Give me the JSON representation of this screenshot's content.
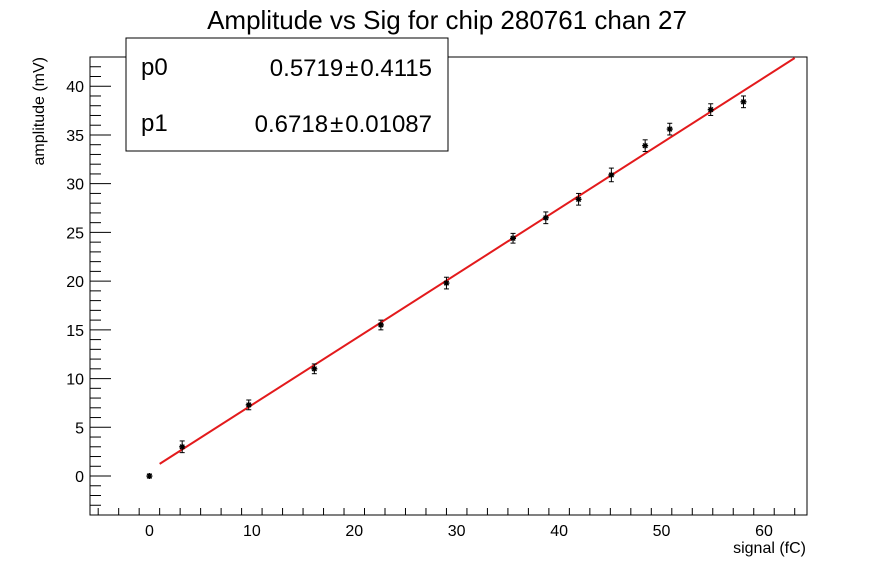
{
  "chart_data": {
    "type": "scatter",
    "title": "Amplitude vs Sig for chip 280761 chan 27",
    "xlabel": "signal (fC)",
    "ylabel": "amplitude (mV)",
    "xlim": [
      -5.8,
      64.2
    ],
    "ylim": [
      -4,
      43
    ],
    "x_ticks": [
      0,
      10,
      20,
      30,
      40,
      50,
      60
    ],
    "y_ticks": [
      0,
      5,
      10,
      15,
      20,
      25,
      30,
      35,
      40
    ],
    "grid": false,
    "points": [
      {
        "x": 0.0,
        "y": 0.0,
        "err": 0.2
      },
      {
        "x": 3.2,
        "y": 3.0,
        "err": 0.6
      },
      {
        "x": 9.7,
        "y": 7.3,
        "err": 0.5
      },
      {
        "x": 16.1,
        "y": 11.0,
        "err": 0.5
      },
      {
        "x": 22.6,
        "y": 15.5,
        "err": 0.5
      },
      {
        "x": 29.0,
        "y": 19.8,
        "err": 0.6
      },
      {
        "x": 35.5,
        "y": 24.4,
        "err": 0.5
      },
      {
        "x": 38.7,
        "y": 26.5,
        "err": 0.6
      },
      {
        "x": 41.9,
        "y": 28.4,
        "err": 0.6
      },
      {
        "x": 45.1,
        "y": 30.9,
        "err": 0.7
      },
      {
        "x": 48.4,
        "y": 33.9,
        "err": 0.6
      },
      {
        "x": 50.8,
        "y": 35.6,
        "err": 0.6
      },
      {
        "x": 54.8,
        "y": 37.6,
        "err": 0.6
      },
      {
        "x": 58.0,
        "y": 38.4,
        "err": 0.6
      }
    ],
    "fit": {
      "color": "#e31a1c",
      "p0": 0.5719,
      "p1": 0.6718,
      "x_range": [
        1.0,
        63.0
      ]
    },
    "stats": [
      {
        "name": "p0",
        "value": "0.5719",
        "error": "0.4115"
      },
      {
        "name": "p1",
        "value": "0.6718",
        "error": "0.01087"
      }
    ],
    "stats_box_position": "top-left",
    "pm_symbol": "±"
  }
}
